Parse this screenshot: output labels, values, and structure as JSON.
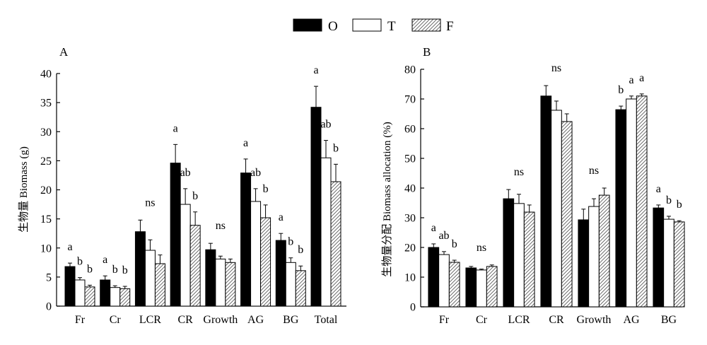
{
  "legend": {
    "position": "top-center",
    "items": [
      {
        "name": "O",
        "fill": "#000000"
      },
      {
        "name": "T",
        "fill": "#ffffff"
      },
      {
        "name": "F",
        "fill": "hatch"
      }
    ]
  },
  "chart_data": [
    {
      "type": "bar",
      "panel_label": "A",
      "ylabel": "生物量 Biomass (g)",
      "ylim": [
        0,
        40
      ],
      "yticks": [
        0,
        5,
        10,
        15,
        20,
        25,
        30,
        35,
        40
      ],
      "grid": false,
      "categories": [
        "Fr",
        "Cr",
        "LCR",
        "CR",
        "Growth",
        "AG",
        "BG",
        "Total"
      ],
      "series": [
        {
          "name": "O",
          "values": [
            6.8,
            4.5,
            12.8,
            24.6,
            9.7,
            22.9,
            11.3,
            34.2
          ],
          "errors": [
            0.6,
            0.7,
            2.0,
            3.2,
            1.1,
            2.4,
            1.2,
            3.6
          ]
        },
        {
          "name": "T",
          "values": [
            4.5,
            3.2,
            9.6,
            17.5,
            8.1,
            18.0,
            7.5,
            25.5
          ],
          "errors": [
            0.4,
            0.3,
            1.8,
            2.7,
            0.5,
            2.2,
            0.8,
            3.0
          ]
        },
        {
          "name": "F",
          "values": [
            3.3,
            3.0,
            7.3,
            13.9,
            7.5,
            15.2,
            6.1,
            21.4
          ],
          "errors": [
            0.3,
            0.4,
            1.5,
            2.3,
            0.6,
            2.2,
            0.8,
            3.0
          ]
        }
      ],
      "significance": [
        [
          "a",
          "b",
          "b"
        ],
        [
          "a",
          "b",
          "b"
        ],
        [
          "ns"
        ],
        [
          "a",
          "ab",
          "b"
        ],
        [
          "ns"
        ],
        [
          "a",
          "ab",
          "b"
        ],
        [
          "a",
          "b",
          "b"
        ],
        [
          "a",
          "ab",
          "b"
        ]
      ]
    },
    {
      "type": "bar",
      "panel_label": "B",
      "ylabel": "生物量分配 Biomass allocation (%)",
      "ylim": [
        0,
        80
      ],
      "yticks": [
        0,
        10,
        20,
        30,
        40,
        50,
        60,
        70,
        80
      ],
      "grid": false,
      "categories": [
        "Fr",
        "Cr",
        "LCR",
        "CR",
        "Growth",
        "AG",
        "BG"
      ],
      "series": [
        {
          "name": "O",
          "values": [
            20.0,
            13.1,
            36.4,
            71.0,
            29.3,
            66.4,
            33.3
          ],
          "errors": [
            1.2,
            0.5,
            3.1,
            3.5,
            3.6,
            1.2,
            1.0
          ]
        },
        {
          "name": "T",
          "values": [
            17.6,
            12.4,
            34.8,
            66.2,
            33.8,
            70.0,
            29.5
          ],
          "errors": [
            1.0,
            0.3,
            3.1,
            3.1,
            2.6,
            1.0,
            1.0
          ]
        },
        {
          "name": "F",
          "values": [
            15.0,
            13.6,
            31.9,
            62.4,
            37.6,
            71.0,
            28.6
          ],
          "errors": [
            0.7,
            0.5,
            2.4,
            2.6,
            2.4,
            0.7,
            0.4
          ]
        }
      ],
      "significance": [
        [
          "a",
          "ab",
          "b"
        ],
        [
          "ns"
        ],
        [
          "ns"
        ],
        [
          "ns"
        ],
        [
          "ns"
        ],
        [
          "b",
          "a",
          "a"
        ],
        [
          "a",
          "b",
          "b"
        ]
      ]
    }
  ]
}
